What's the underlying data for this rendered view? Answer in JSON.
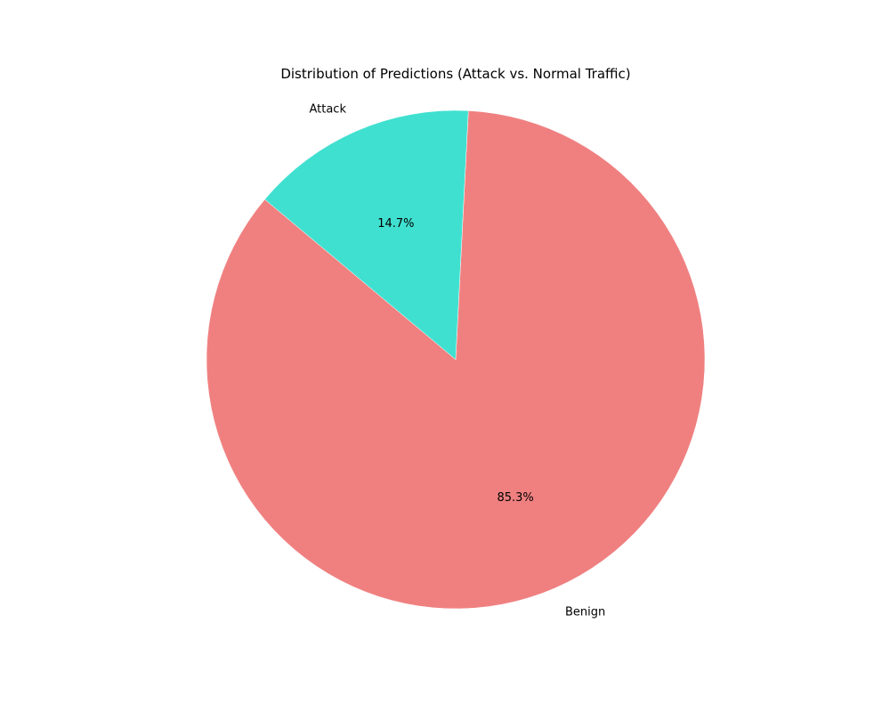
{
  "chart_data": {
    "type": "pie",
    "title": "Distribution of Predictions (Attack vs. Normal Traffic)",
    "start_angle_deg": 140,
    "direction": "counterclockwise",
    "slices": [
      {
        "label": "Benign",
        "percent": 85.3,
        "percent_label": "85.3%",
        "color": "#f08080"
      },
      {
        "label": "Attack",
        "percent": 14.7,
        "percent_label": "14.7%",
        "color": "#40e0d0"
      }
    ]
  }
}
